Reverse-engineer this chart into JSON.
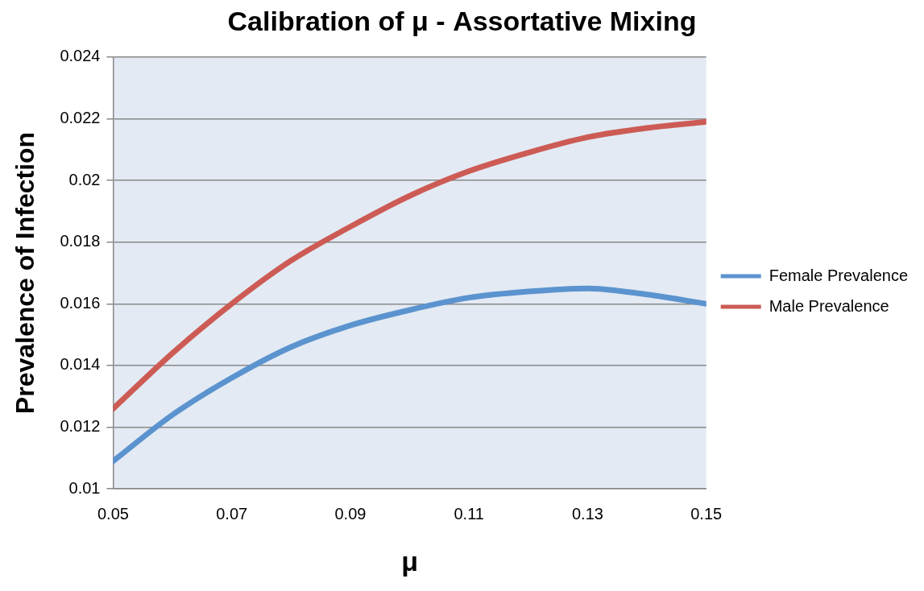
{
  "chart_data": {
    "type": "line",
    "title": "Calibration of μ - Assortative Mixing",
    "xlabel": "μ",
    "ylabel": "Prevalence of Infection",
    "x": [
      0.05,
      0.06,
      0.07,
      0.08,
      0.09,
      0.1,
      0.11,
      0.12,
      0.13,
      0.14,
      0.15
    ],
    "series": [
      {
        "name": "Female Prevalence",
        "color": "#5b93cf",
        "values": [
          0.0109,
          0.0124,
          0.0136,
          0.0146,
          0.0153,
          0.0158,
          0.0162,
          0.0164,
          0.0165,
          0.0163,
          0.016
        ]
      },
      {
        "name": "Male Prevalence",
        "color": "#cd5b55",
        "values": [
          0.0126,
          0.0144,
          0.016,
          0.0174,
          0.0185,
          0.0195,
          0.0203,
          0.0209,
          0.0214,
          0.0217,
          0.0219
        ]
      }
    ],
    "xlim": [
      0.05,
      0.15
    ],
    "xticks": [
      0.05,
      0.07,
      0.09,
      0.11,
      0.13,
      0.15
    ],
    "ylim": [
      0.01,
      0.024
    ],
    "yticks": [
      0.01,
      0.012,
      0.014,
      0.016,
      0.018,
      0.02,
      0.022,
      0.024
    ],
    "grid": "y",
    "legend": "right",
    "marker": "none",
    "line_style": "solid"
  }
}
